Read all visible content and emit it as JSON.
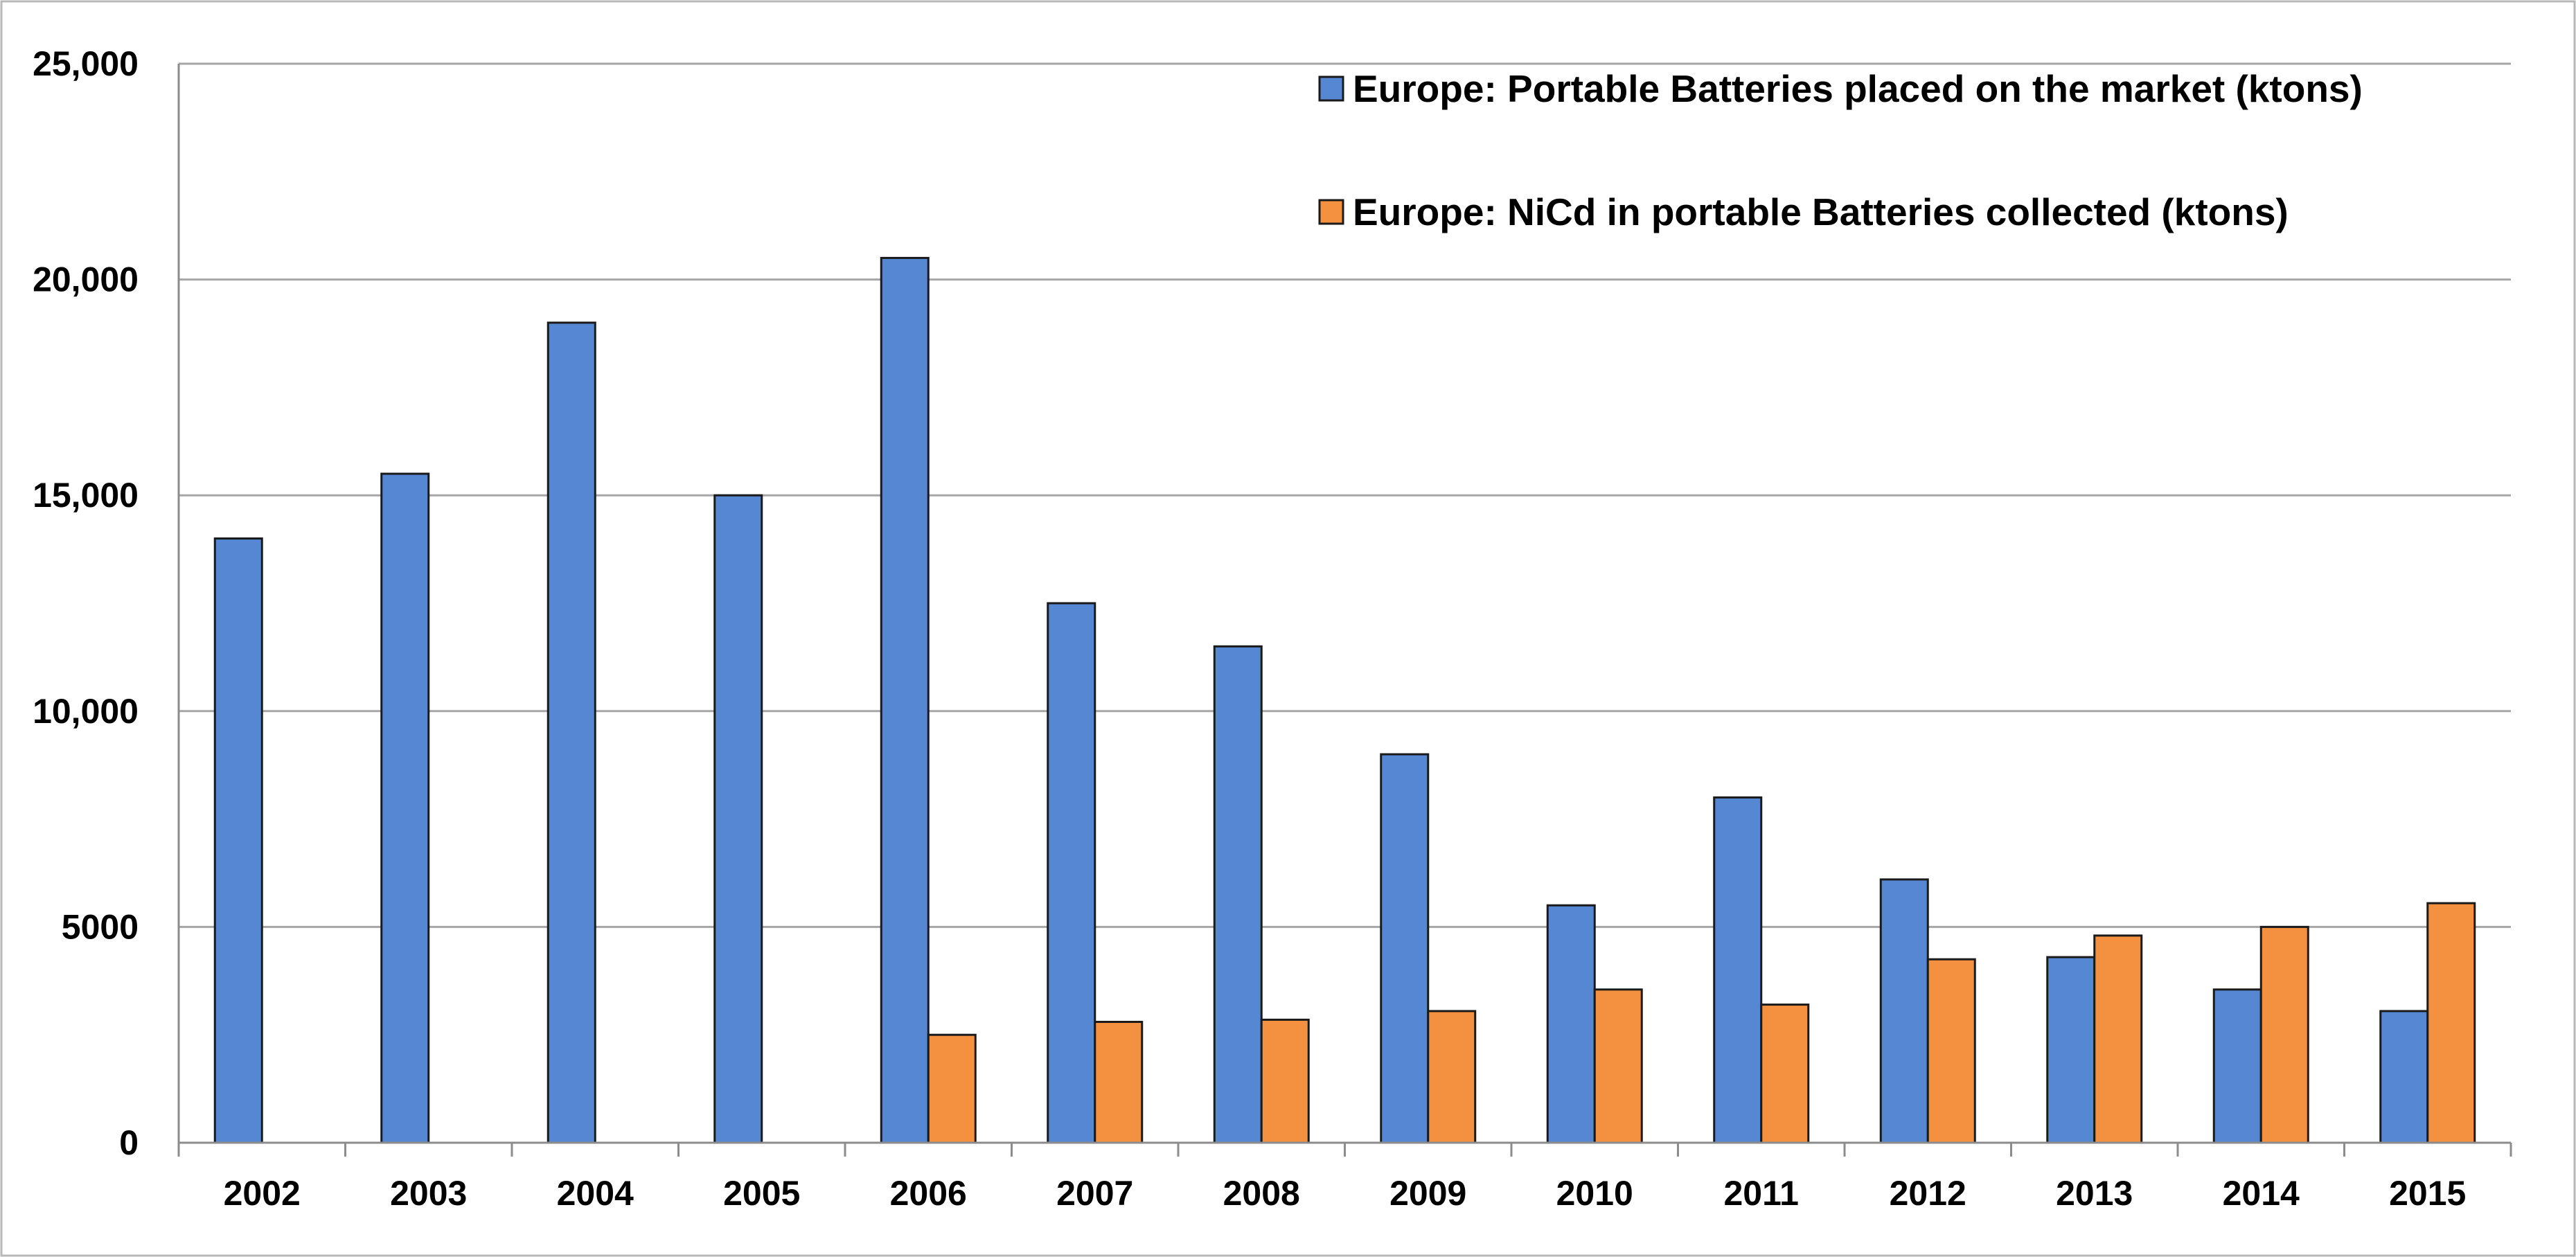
{
  "chart_data": {
    "type": "bar",
    "title": "",
    "xlabel": "",
    "ylabel": "",
    "ylim": [
      0,
      25000
    ],
    "grid": true,
    "legend_position": "top-right",
    "categories": [
      "2002",
      "2003",
      "2004",
      "2005",
      "2006",
      "2007",
      "2008",
      "2009",
      "2010",
      "2011",
      "2012",
      "2013",
      "2014",
      "2015"
    ],
    "y_ticks": [
      {
        "value": 0,
        "label": "0"
      },
      {
        "value": 5000,
        "label": "5000"
      },
      {
        "value": 10000,
        "label": "10,000"
      },
      {
        "value": 15000,
        "label": "15,000"
      },
      {
        "value": 20000,
        "label": "20,000"
      },
      {
        "value": 25000,
        "label": "25,000"
      }
    ],
    "series": [
      {
        "name": "Europe: Portable Batteries placed on the market (ktons)",
        "color": "#5587d2",
        "values": [
          14000,
          15500,
          19000,
          15000,
          20500,
          12500,
          11500,
          9000,
          5500,
          8000,
          6100,
          4300,
          3550,
          3050
        ]
      },
      {
        "name": "Europe: NiCd in portable Batteries collected (ktons)",
        "color": "#f39141",
        "values": [
          null,
          null,
          null,
          null,
          2500,
          2800,
          2850,
          3050,
          3550,
          3200,
          4250,
          4800,
          5000,
          5550
        ]
      }
    ]
  }
}
